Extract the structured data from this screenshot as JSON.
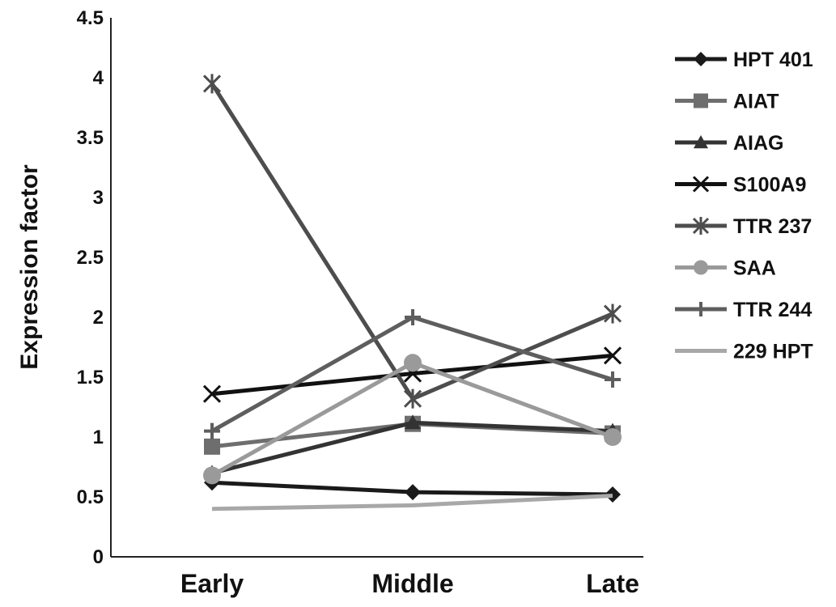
{
  "chart_data": {
    "type": "line",
    "title": "",
    "xlabel": "",
    "ylabel": "Expression factor",
    "ylim": [
      0,
      4.5
    ],
    "yticks": [
      "0",
      "0.5",
      "1",
      "1.5",
      "2",
      "2.5",
      "3",
      "3.5",
      "4",
      "4.5"
    ],
    "categories": [
      "Early",
      "Middle",
      "Late"
    ],
    "grid": false,
    "legend_position": "right",
    "series": [
      {
        "name": "HPT 401",
        "values": [
          0.62,
          0.54,
          0.52
        ],
        "color": "#1a1a1a",
        "marker": "diamond"
      },
      {
        "name": "AIAT",
        "values": [
          0.92,
          1.11,
          1.03
        ],
        "color": "#6e6e6e",
        "marker": "square"
      },
      {
        "name": "AIAG",
        "values": [
          0.7,
          1.12,
          1.05
        ],
        "color": "#333333",
        "marker": "triangle"
      },
      {
        "name": "S100A9",
        "values": [
          1.36,
          1.53,
          1.68
        ],
        "color": "#111111",
        "marker": "x"
      },
      {
        "name": "TTR 237",
        "values": [
          3.95,
          1.32,
          2.03
        ],
        "color": "#4d4d4d",
        "marker": "asterisk"
      },
      {
        "name": "SAA",
        "values": [
          0.68,
          1.62,
          1.0
        ],
        "color": "#9a9a9a",
        "marker": "circle"
      },
      {
        "name": "TTR 244",
        "values": [
          1.05,
          2.0,
          1.48
        ],
        "color": "#5e5e5e",
        "marker": "plus"
      },
      {
        "name": "229 HPT",
        "values": [
          0.4,
          0.43,
          0.51
        ],
        "color": "#a8a8a8",
        "marker": "dash"
      }
    ]
  }
}
